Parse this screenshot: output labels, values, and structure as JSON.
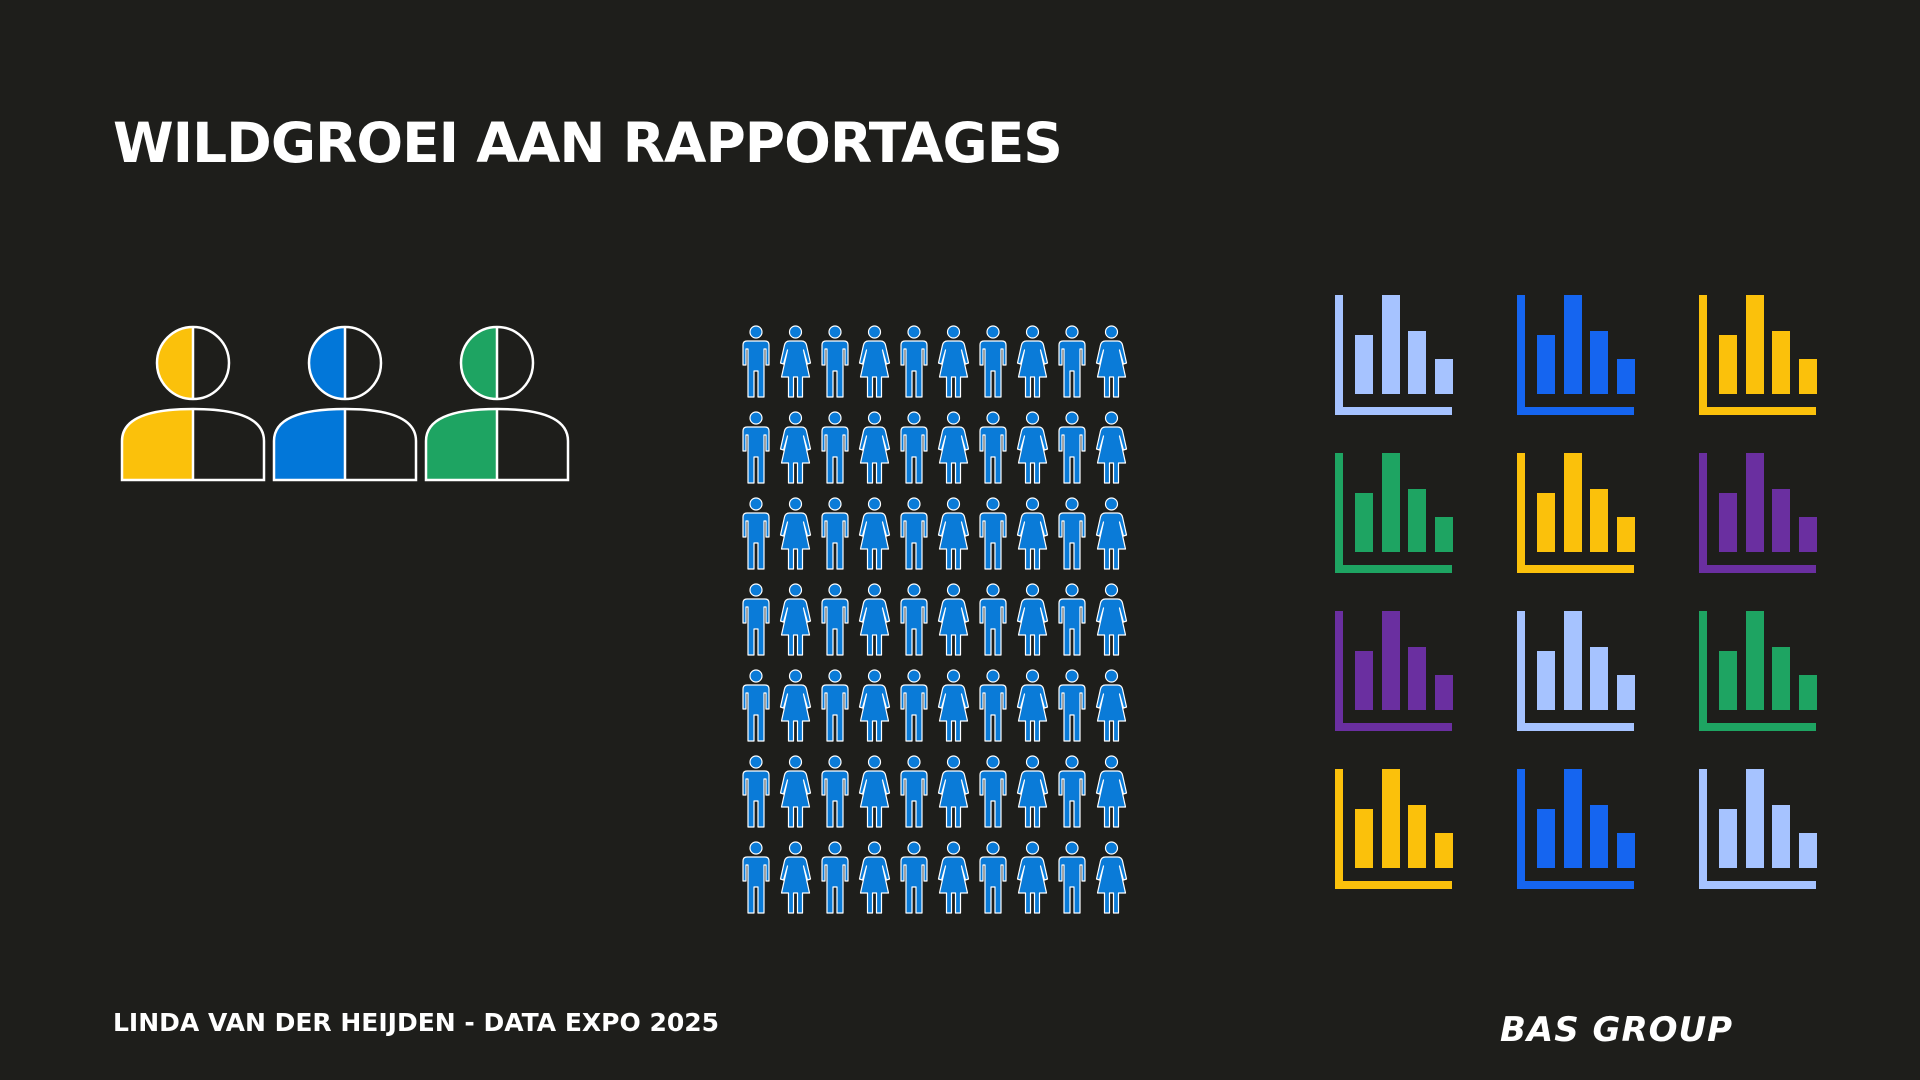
{
  "slide": {
    "title": "WILDGROEI AAN RAPPORTAGES",
    "footer": "LINDA VAN DER HEIJDEN - DATA EXPO 2025",
    "logo": "BAS GROUP"
  },
  "persons": {
    "icon": "person-half-filled-icon",
    "colors": [
      "#fbc10b",
      "#0277d9",
      "#1ea462"
    ]
  },
  "crowd": {
    "icon": "person-figure-icon",
    "rows": 7,
    "columns": 10,
    "color": "#0a7bd8"
  },
  "charts": {
    "icon": "bar-chart-icon",
    "columns": 3,
    "colors": [
      "#a6c3ff",
      "#1565f0",
      "#fbc10b",
      "#1ea462",
      "#fbc10b",
      "#6a2fa0",
      "#6a2fa0",
      "#a6c3ff",
      "#1ea462",
      "#fbc10b",
      "#1565f0",
      "#a6c3ff"
    ]
  }
}
